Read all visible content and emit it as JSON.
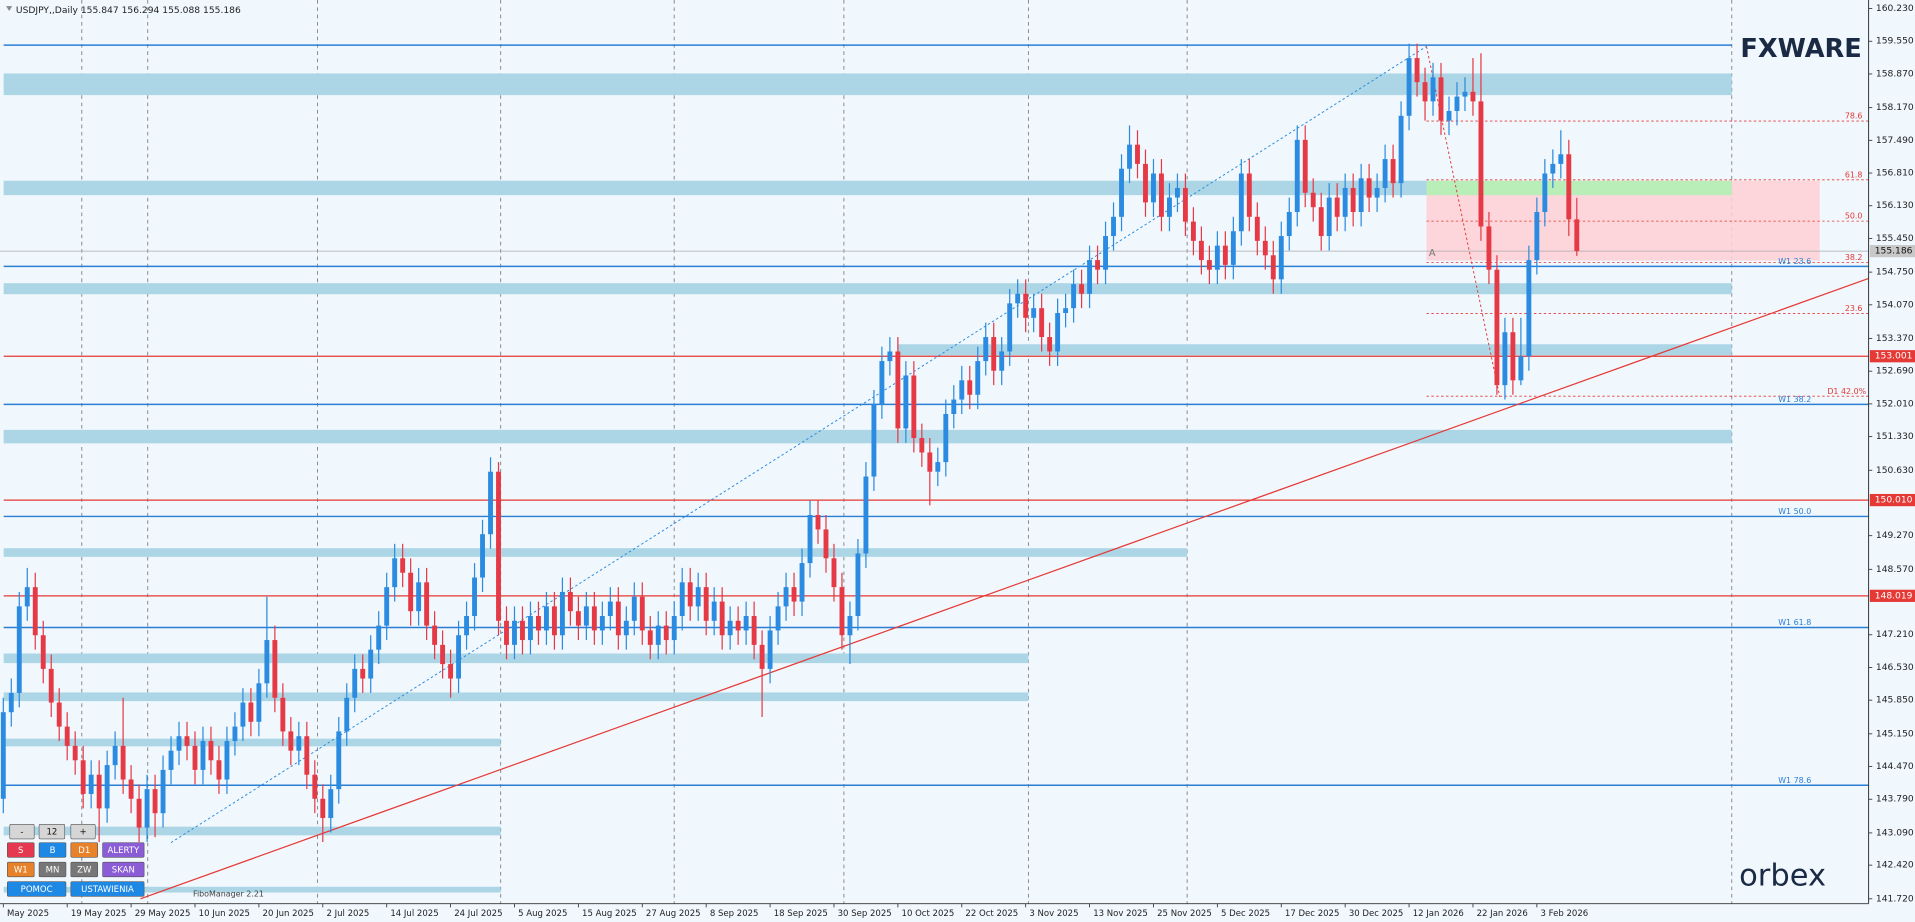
{
  "chart_data": {
    "type": "candlestick",
    "symbol": "USDJPY,,Daily",
    "indicator_label": "FiboManager 2.21",
    "colors": {
      "up": "#2a8be0",
      "down": "#e63946",
      "zone": "#acd6e6",
      "w1": "#2a7fd4",
      "red_level": "#e53935",
      "fib": "#e53935",
      "fib_zone": "#ffd0d6",
      "fib_green": "#b9eeb9",
      "price_box": "#c8c8c8"
    },
    "ylim": [
      141.72,
      160.23
    ],
    "yticks": [
      {
        "value": 160.23,
        "label": "160.230"
      },
      {
        "value": 159.55,
        "label": "159.550"
      },
      {
        "value": 158.87,
        "label": "158.870"
      },
      {
        "value": 158.17,
        "label": "158.170"
      },
      {
        "value": 157.49,
        "label": "157.490"
      },
      {
        "value": 156.81,
        "label": "156.810"
      },
      {
        "value": 156.13,
        "label": "156.130"
      },
      {
        "value": 155.45,
        "label": "155.450"
      },
      {
        "value": 154.75,
        "label": "154.750"
      },
      {
        "value": 154.07,
        "label": "154.070"
      },
      {
        "value": 153.37,
        "label": "153.370"
      },
      {
        "value": 152.69,
        "label": "152.690"
      },
      {
        "value": 152.01,
        "label": "152.010"
      },
      {
        "value": 151.33,
        "label": "151.330"
      },
      {
        "value": 150.63,
        "label": "150.630"
      },
      {
        "value": 149.27,
        "label": "149.270"
      },
      {
        "value": 148.57,
        "label": "148.570"
      },
      {
        "value": 147.21,
        "label": "147.210"
      },
      {
        "value": 146.53,
        "label": "146.530"
      },
      {
        "value": 145.85,
        "label": "145.850"
      },
      {
        "value": 145.15,
        "label": "145.150"
      },
      {
        "value": 144.47,
        "label": "144.470"
      },
      {
        "value": 143.79,
        "label": "143.790"
      },
      {
        "value": 143.09,
        "label": "143.090"
      },
      {
        "value": 142.42,
        "label": "142.420"
      },
      {
        "value": 141.72,
        "label": "141.720"
      }
    ],
    "categories": [
      "May 2025",
      null,
      null,
      null,
      null,
      null,
      null,
      null,
      "19 May 2025",
      null,
      null,
      null,
      null,
      null,
      null,
      null,
      "29 May 2025",
      null,
      null,
      null,
      null,
      null,
      null,
      null,
      "10 Jun 2025",
      null,
      null,
      null,
      null,
      null,
      null,
      null,
      "20 Jun 2025",
      null,
      null,
      null,
      null,
      null,
      null,
      null,
      "2 Jul 2025",
      null,
      null,
      null,
      null,
      null,
      null,
      null,
      "14 Jul 2025",
      null,
      null,
      null,
      null,
      null,
      null,
      null,
      "24 Jul 2025",
      null,
      null,
      null,
      null,
      null,
      null,
      null,
      "5 Aug 2025",
      null,
      null,
      null,
      null,
      null,
      null,
      null,
      "15 Aug 2025",
      null,
      null,
      null,
      null,
      null,
      null,
      null,
      "27 Aug 2025",
      null,
      null,
      null,
      null,
      null,
      null,
      null,
      "8 Sep 2025",
      null,
      null,
      null,
      null,
      null,
      null,
      null,
      "18 Sep 2025",
      null,
      null,
      null,
      null,
      null,
      null,
      null,
      "30 Sep 2025",
      null,
      null,
      null,
      null,
      null,
      null,
      null,
      "10 Oct 2025",
      null,
      null,
      null,
      null,
      null,
      null,
      null,
      "22 Oct 2025",
      null,
      null,
      null,
      null,
      null,
      null,
      null,
      "3 Nov 2025",
      null,
      null,
      null,
      null,
      null,
      null,
      null,
      "13 Nov 2025",
      null,
      null,
      null,
      null,
      null,
      null,
      null,
      "25 Nov 2025",
      null,
      null,
      null,
      null,
      null,
      null,
      null,
      "5 Dec 2025",
      null,
      null,
      null,
      null,
      null,
      null,
      null,
      "17 Dec 2025",
      null,
      null,
      null,
      null,
      null,
      null,
      null,
      "30 Dec 2025",
      null,
      null,
      null,
      null,
      null,
      null,
      null,
      "12 Jan 2026",
      null,
      null,
      null,
      null,
      null,
      null,
      null,
      "22 Jan 2026",
      null,
      null,
      null,
      null,
      null,
      null,
      null,
      "3 Feb 2026",
      null,
      null,
      null,
      null,
      null
    ],
    "open": [
      143.8,
      145.6,
      146.0,
      147.8,
      148.2,
      147.2,
      146.5,
      145.8,
      145.3,
      144.9,
      144.6,
      143.9,
      144.3,
      143.6,
      144.5,
      144.9,
      144.2,
      143.8,
      143.2,
      144.0,
      143.5,
      144.4,
      144.8,
      145.1,
      144.9,
      144.4,
      145.0,
      144.6,
      144.2,
      145.0,
      145.3,
      145.8,
      145.4,
      146.2,
      147.1,
      145.9,
      145.2,
      144.8,
      145.1,
      144.3,
      143.8,
      143.4,
      144.0,
      145.2,
      145.9,
      146.5,
      146.3,
      146.9,
      147.4,
      148.2,
      148.8,
      148.5,
      147.7,
      148.3,
      147.4,
      147.0,
      146.6,
      146.3,
      147.2,
      147.6,
      148.4,
      149.3,
      150.6,
      147.5,
      147.0,
      147.5,
      147.1,
      147.6,
      147.3,
      147.8,
      147.2,
      148.1,
      147.7,
      147.4,
      147.8,
      147.3,
      147.6,
      147.9,
      147.2,
      147.5,
      148.0,
      147.3,
      147.0,
      147.4,
      147.1,
      147.6,
      148.3,
      147.8,
      148.2,
      147.5,
      147.9,
      147.2,
      147.5,
      147.3,
      147.6,
      147.0,
      146.5,
      147.3,
      147.8,
      148.2,
      147.9,
      148.7,
      149.7,
      149.4,
      148.8,
      148.2,
      147.2,
      147.6,
      148.9,
      150.5,
      152.0,
      152.9,
      153.1,
      151.5,
      152.6,
      151.3,
      151.0,
      150.6,
      150.8,
      151.8,
      152.1,
      152.5,
      152.2,
      152.9,
      153.4,
      152.7,
      153.1,
      154.1,
      154.3,
      153.8,
      154.0,
      153.4,
      153.1,
      153.9,
      154.0,
      154.5,
      154.3,
      155.0,
      154.8,
      155.5,
      155.9,
      156.9,
      157.4,
      157.0,
      156.2,
      156.8,
      155.9,
      156.3,
      156.5,
      155.8,
      155.4,
      155.0,
      154.8,
      155.3,
      154.9,
      155.6,
      156.8,
      155.9,
      155.4,
      155.1,
      154.6,
      155.5,
      156.0,
      157.5,
      156.4,
      156.1,
      155.5,
      156.3,
      155.9,
      156.5,
      156.0,
      156.7,
      156.3,
      156.5,
      157.1,
      156.6,
      158.0,
      159.2,
      158.7,
      158.3,
      158.8,
      157.9,
      158.1,
      158.4,
      158.5,
      158.3,
      155.7,
      154.8,
      152.4,
      153.5,
      152.5,
      153.0,
      155.0,
      156.0,
      156.8,
      157.0,
      157.2,
      155.847
    ],
    "high": [
      145.9,
      146.3,
      148.1,
      148.6,
      148.5,
      147.5,
      146.8,
      146.1,
      145.6,
      145.2,
      144.9,
      144.6,
      144.6,
      144.8,
      145.2,
      145.9,
      144.5,
      144.1,
      144.3,
      144.3,
      144.7,
      145.1,
      145.4,
      145.4,
      145.2,
      145.3,
      145.3,
      144.9,
      145.3,
      145.6,
      146.1,
      146.1,
      146.5,
      148.0,
      147.4,
      146.2,
      145.5,
      145.4,
      145.4,
      144.6,
      144.1,
      144.3,
      145.5,
      146.2,
      146.8,
      146.8,
      147.2,
      147.7,
      148.5,
      149.1,
      149.1,
      148.8,
      148.6,
      148.6,
      147.7,
      147.3,
      146.9,
      147.5,
      147.9,
      148.7,
      149.6,
      150.9,
      150.8,
      147.8,
      147.8,
      147.8,
      147.9,
      147.9,
      148.1,
      148.1,
      148.4,
      148.4,
      148.0,
      148.1,
      148.1,
      147.9,
      148.2,
      148.2,
      147.8,
      148.3,
      148.3,
      147.6,
      147.7,
      147.7,
      147.9,
      148.6,
      148.6,
      148.5,
      148.5,
      148.2,
      148.2,
      147.8,
      147.8,
      147.9,
      147.9,
      147.3,
      147.6,
      148.1,
      148.5,
      148.5,
      149.0,
      150.0,
      150.0,
      149.7,
      149.1,
      148.5,
      147.9,
      149.2,
      150.8,
      152.3,
      153.2,
      153.4,
      153.4,
      152.9,
      152.9,
      151.6,
      151.3,
      151.1,
      152.1,
      152.4,
      152.8,
      152.8,
      153.2,
      153.7,
      153.7,
      153.4,
      154.4,
      154.6,
      154.6,
      154.3,
      154.3,
      153.7,
      154.2,
      154.3,
      154.8,
      154.8,
      155.3,
      155.3,
      155.8,
      156.2,
      157.2,
      157.8,
      157.7,
      157.3,
      157.1,
      157.1,
      156.6,
      156.8,
      156.8,
      156.1,
      155.7,
      155.3,
      155.6,
      155.6,
      155.9,
      157.1,
      157.1,
      156.2,
      155.7,
      155.4,
      155.8,
      156.3,
      157.8,
      157.8,
      156.7,
      156.4,
      156.6,
      156.6,
      156.8,
      156.8,
      157.0,
      157.0,
      156.8,
      157.4,
      157.4,
      158.3,
      159.5,
      159.5,
      159.0,
      159.1,
      159.1,
      158.4,
      158.7,
      158.8,
      159.2,
      159.3,
      156.0,
      155.1,
      153.8,
      153.8,
      153.8,
      155.3,
      156.3,
      157.1,
      157.3,
      157.7,
      157.5,
      156.294
    ],
    "low": [
      143.5,
      145.3,
      145.7,
      147.5,
      146.9,
      146.2,
      145.5,
      145.0,
      144.6,
      144.3,
      143.6,
      143.6,
      142.9,
      143.3,
      144.2,
      143.9,
      143.5,
      142.9,
      142.9,
      143.0,
      143.2,
      144.1,
      144.5,
      144.6,
      144.1,
      144.1,
      144.3,
      143.9,
      143.9,
      144.7,
      145.0,
      145.1,
      145.1,
      145.9,
      145.6,
      144.9,
      144.5,
      144.5,
      144.0,
      143.5,
      142.9,
      143.1,
      143.7,
      144.9,
      145.6,
      146.0,
      146.0,
      146.6,
      147.1,
      147.9,
      148.2,
      147.4,
      147.4,
      147.1,
      146.7,
      146.3,
      145.9,
      146.0,
      146.9,
      147.3,
      148.1,
      149.0,
      147.2,
      146.7,
      146.7,
      146.8,
      146.8,
      147.0,
      147.0,
      146.9,
      146.9,
      147.4,
      147.1,
      147.1,
      147.0,
      147.0,
      147.3,
      146.9,
      146.9,
      147.2,
      147.0,
      146.7,
      146.7,
      146.8,
      146.8,
      147.3,
      147.5,
      147.5,
      147.2,
      147.2,
      146.9,
      146.9,
      147.0,
      147.0,
      146.7,
      145.5,
      146.2,
      147.0,
      147.5,
      147.6,
      147.6,
      148.4,
      149.1,
      148.5,
      147.9,
      146.9,
      146.6,
      147.3,
      148.6,
      150.2,
      151.7,
      152.6,
      151.2,
      151.2,
      151.0,
      150.7,
      149.9,
      150.3,
      150.5,
      151.5,
      151.8,
      151.9,
      151.9,
      152.6,
      152.4,
      152.4,
      152.8,
      153.8,
      153.5,
      153.5,
      153.1,
      152.8,
      152.8,
      153.6,
      153.7,
      154.0,
      154.0,
      154.5,
      154.5,
      155.2,
      155.6,
      156.6,
      156.7,
      155.9,
      155.9,
      155.6,
      155.6,
      156.0,
      155.5,
      155.1,
      154.7,
      154.5,
      154.5,
      154.6,
      154.6,
      155.3,
      155.6,
      155.1,
      154.8,
      154.3,
      154.3,
      155.2,
      155.7,
      156.1,
      155.8,
      155.2,
      155.2,
      155.6,
      155.6,
      155.7,
      155.7,
      156.0,
      156.0,
      156.2,
      156.3,
      156.3,
      157.7,
      158.4,
      157.9,
      158.0,
      157.6,
      157.6,
      157.8,
      158.1,
      158.0,
      155.4,
      154.5,
      152.2,
      152.1,
      152.2,
      152.4,
      152.7,
      154.7,
      155.7,
      156.5,
      156.7,
      155.5,
      155.088
    ],
    "close": [
      145.6,
      146.0,
      147.8,
      148.2,
      147.2,
      146.5,
      145.8,
      145.3,
      144.9,
      144.6,
      143.9,
      144.3,
      143.6,
      144.5,
      144.9,
      144.2,
      143.8,
      143.2,
      144.0,
      143.5,
      144.4,
      144.8,
      145.1,
      144.9,
      144.4,
      145.0,
      144.6,
      144.2,
      145.0,
      145.3,
      145.8,
      145.4,
      146.2,
      147.1,
      145.9,
      145.2,
      144.8,
      145.1,
      144.3,
      143.8,
      143.4,
      144.0,
      145.2,
      145.9,
      146.5,
      146.3,
      146.9,
      147.4,
      148.2,
      148.8,
      148.5,
      147.7,
      148.3,
      147.4,
      147.0,
      146.6,
      146.3,
      147.2,
      147.6,
      148.4,
      149.3,
      150.6,
      147.5,
      147.0,
      147.5,
      147.1,
      147.6,
      147.3,
      147.8,
      147.2,
      148.1,
      147.7,
      147.4,
      147.8,
      147.3,
      147.6,
      147.9,
      147.2,
      147.5,
      148.0,
      147.3,
      147.0,
      147.4,
      147.1,
      147.6,
      148.3,
      147.8,
      148.2,
      147.5,
      147.9,
      147.2,
      147.5,
      147.3,
      147.6,
      147.0,
      146.5,
      147.3,
      147.8,
      148.2,
      147.9,
      148.7,
      149.7,
      149.4,
      148.8,
      148.2,
      147.2,
      147.6,
      148.9,
      150.5,
      152.0,
      152.9,
      153.1,
      151.5,
      152.6,
      151.3,
      151.0,
      150.6,
      150.8,
      151.8,
      152.1,
      152.5,
      152.2,
      152.9,
      153.4,
      152.7,
      153.1,
      154.1,
      154.3,
      153.8,
      154.0,
      153.4,
      153.1,
      153.9,
      154.0,
      154.5,
      154.3,
      155.0,
      154.8,
      155.5,
      155.9,
      156.9,
      157.4,
      157.0,
      156.2,
      156.8,
      155.9,
      156.3,
      156.5,
      155.8,
      155.4,
      155.0,
      154.8,
      155.3,
      154.9,
      155.6,
      156.8,
      155.9,
      155.4,
      155.1,
      154.6,
      155.5,
      156.0,
      157.5,
      156.4,
      156.1,
      155.5,
      156.3,
      155.9,
      156.5,
      156.0,
      156.7,
      156.3,
      156.5,
      157.1,
      156.6,
      158.0,
      159.2,
      158.7,
      158.3,
      158.8,
      157.9,
      158.1,
      158.4,
      158.5,
      158.3,
      155.7,
      154.8,
      152.4,
      153.5,
      152.5,
      153.0,
      155.0,
      156.0,
      156.8,
      157.0,
      157.2,
      155.847,
      155.186
    ],
    "zones": [
      {
        "low": 158.43,
        "high": 158.88
      },
      {
        "low": 156.35,
        "high": 156.65
      },
      {
        "low": 154.29,
        "high": 154.52
      },
      {
        "low": 153.02,
        "high": 153.25
      },
      {
        "low": 151.19,
        "high": 151.47
      },
      {
        "low": 148.83,
        "high": 149.01
      },
      {
        "low": 146.62,
        "high": 146.82
      },
      {
        "low": 145.83,
        "high": 146.01
      },
      {
        "low": 144.89,
        "high": 145.05
      },
      {
        "low": 143.04,
        "high": 143.22
      },
      {
        "low": 141.85,
        "high": 141.97
      }
    ],
    "top_line": 159.47,
    "w1_levels": [
      {
        "price": 154.87,
        "label": "W1 23.6"
      },
      {
        "price": 152.0,
        "label": "W1 38.2"
      },
      {
        "price": 149.67,
        "label": "W1 50.0"
      },
      {
        "price": 147.36,
        "label": "W1 61.8"
      },
      {
        "price": 144.08,
        "label": "W1 78.6"
      }
    ],
    "red_levels": [
      {
        "value": 153.001,
        "label": "153.001"
      },
      {
        "value": 150.01,
        "label": "150.010"
      },
      {
        "value": 148.019,
        "label": "148.019"
      }
    ],
    "fib": {
      "levels": [
        {
          "label": "78.6",
          "price": 157.89
        },
        {
          "label": "61.8",
          "price": 156.67
        },
        {
          "label": "50.0",
          "price": 155.81
        },
        {
          "label": "38.2",
          "price": 154.95
        },
        {
          "label": "23.6",
          "price": 153.89
        }
      ],
      "zone": {
        "low": 154.99,
        "high": 156.65
      },
      "green_zone": {
        "low": 156.35,
        "high": 156.65
      },
      "base": {
        "label": "D1 42.0%",
        "price": 152.17
      },
      "anchor_label": "A"
    }
  },
  "logos": {
    "top": "FXWARE",
    "bottom": "orbex"
  },
  "toolbar": {
    "buttons": [
      [
        "-",
        "12",
        "+"
      ],
      [
        "S",
        "B",
        "D1",
        "ALERTY"
      ],
      [
        "W1",
        "MN",
        "ZW",
        "SKAN"
      ],
      [
        "POMOC",
        "USTAWIENIA"
      ]
    ]
  }
}
